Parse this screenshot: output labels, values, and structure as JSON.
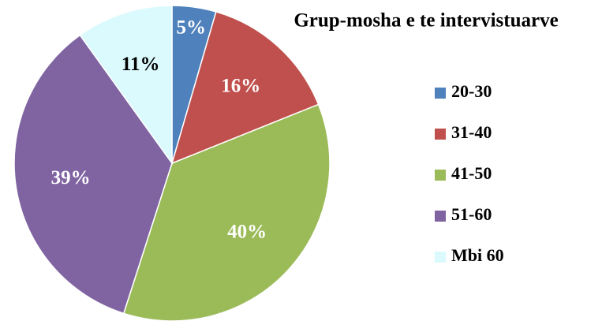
{
  "chart_data": {
    "type": "pie",
    "title": "Grup-mosha e te intervistuarve",
    "categories": [
      "20-30",
      "31-40",
      "41-50",
      "51-60",
      "Mbi 60"
    ],
    "values": [
      5,
      16,
      40,
      39,
      11
    ],
    "value_labels": [
      "5%",
      "16%",
      "40%",
      "39%",
      "11%"
    ],
    "colors": [
      "#4f81bd",
      "#c0504d",
      "#9bbb59",
      "#8064a2",
      "#dafafd"
    ],
    "legend": "right"
  }
}
